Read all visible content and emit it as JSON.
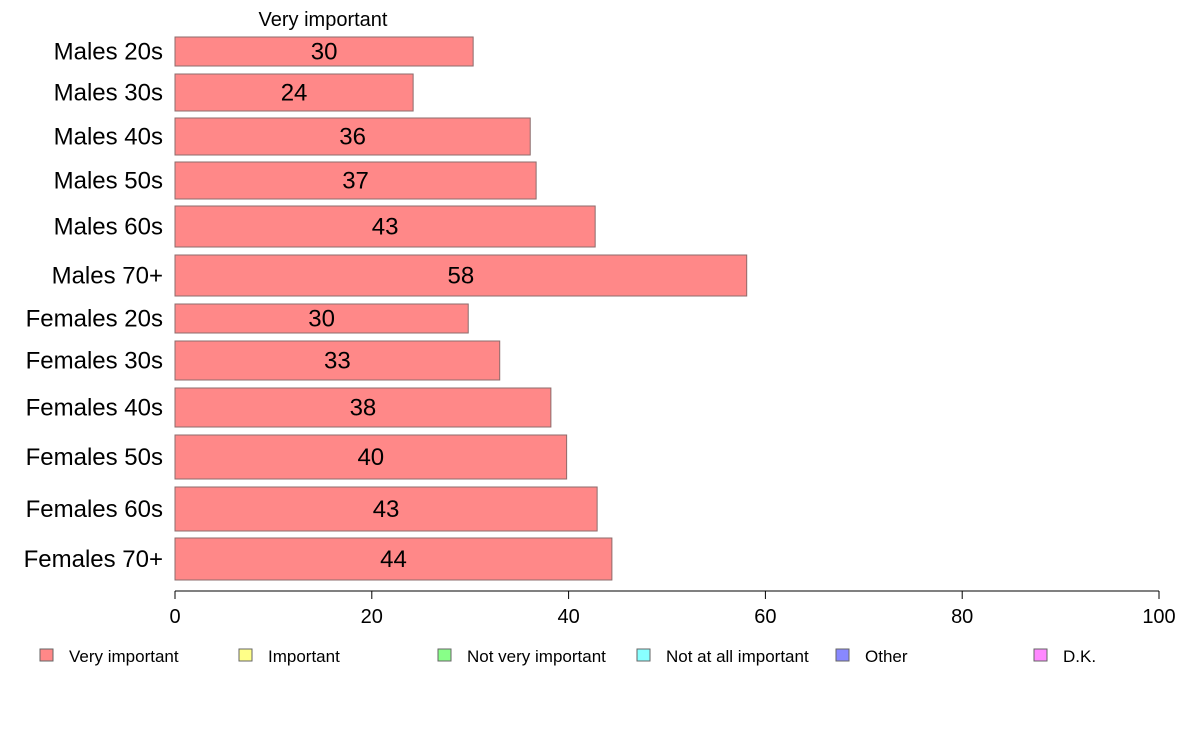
{
  "chart_data": {
    "type": "bar",
    "orientation": "horizontal",
    "stacked": true,
    "title": "Very important",
    "xlabel": "",
    "ylabel": "",
    "xlim": [
      0,
      100
    ],
    "xticks": [
      0,
      20,
      40,
      60,
      80,
      100
    ],
    "grid": false,
    "legend_position": "bottom",
    "categories": [
      "Males 20s",
      "Males 30s",
      "Males 40s",
      "Males 50s",
      "Males 60s",
      "Males 70+",
      "Females 20s",
      "Females 30s",
      "Females 40s",
      "Females 50s",
      "Females 60s",
      "Females 70+"
    ],
    "series": [
      {
        "name": "Very important",
        "color": "#ff8888",
        "values": [
          30.3,
          24.2,
          36.1,
          36.7,
          42.7,
          58.1,
          29.8,
          33.0,
          38.2,
          39.8,
          42.9,
          44.4
        ],
        "labels": [
          "30",
          "24",
          "36",
          "37",
          "43",
          "58",
          "30",
          "33",
          "38",
          "40",
          "43",
          "44"
        ]
      }
    ],
    "legend": [
      {
        "label": "Very important",
        "color": "#ff8888"
      },
      {
        "label": "Important",
        "color": "#ffff88"
      },
      {
        "label": "Not very important",
        "color": "#88ff88"
      },
      {
        "label": "Not at all important",
        "color": "#88ffff"
      },
      {
        "label": "Other",
        "color": "#8888ff"
      },
      {
        "label": "D.K.",
        "color": "#ff88ff"
      }
    ]
  }
}
